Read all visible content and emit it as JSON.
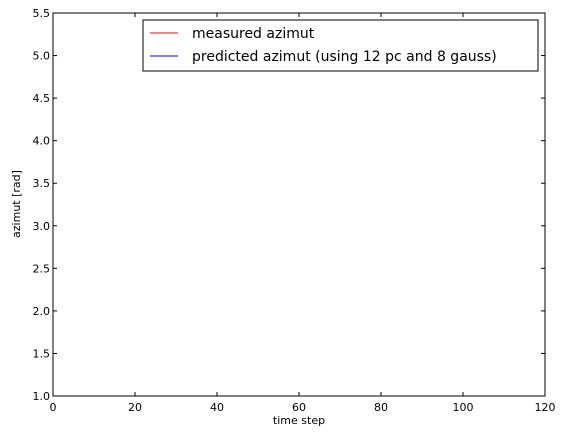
{
  "chart_data": {
    "type": "line",
    "title": "",
    "xlabel": "time step",
    "ylabel": "azimut [rad]",
    "xlim": [
      0,
      120
    ],
    "ylim": [
      1.0,
      5.5
    ],
    "xticks": [
      0,
      20,
      40,
      60,
      80,
      100,
      120
    ],
    "yticks": [
      1.0,
      1.5,
      2.0,
      2.5,
      3.0,
      3.5,
      4.0,
      4.5,
      5.0,
      5.5
    ],
    "xtick_labels": [
      "0",
      "20",
      "40",
      "60",
      "80",
      "100",
      "120"
    ],
    "ytick_labels": [
      "1.0",
      "1.5",
      "2.0",
      "2.5",
      "3.0",
      "3.5",
      "4.0",
      "4.5",
      "5.0",
      "5.5"
    ],
    "grid": false,
    "legend_position": "top-right",
    "series": [
      {
        "name": "measured azimut",
        "color": "#ff0000",
        "x": [],
        "y": []
      },
      {
        "name": "predicted azimut (using 12 pc and 8 gauss)",
        "color": "#0000ff",
        "x": [],
        "y": []
      }
    ]
  }
}
